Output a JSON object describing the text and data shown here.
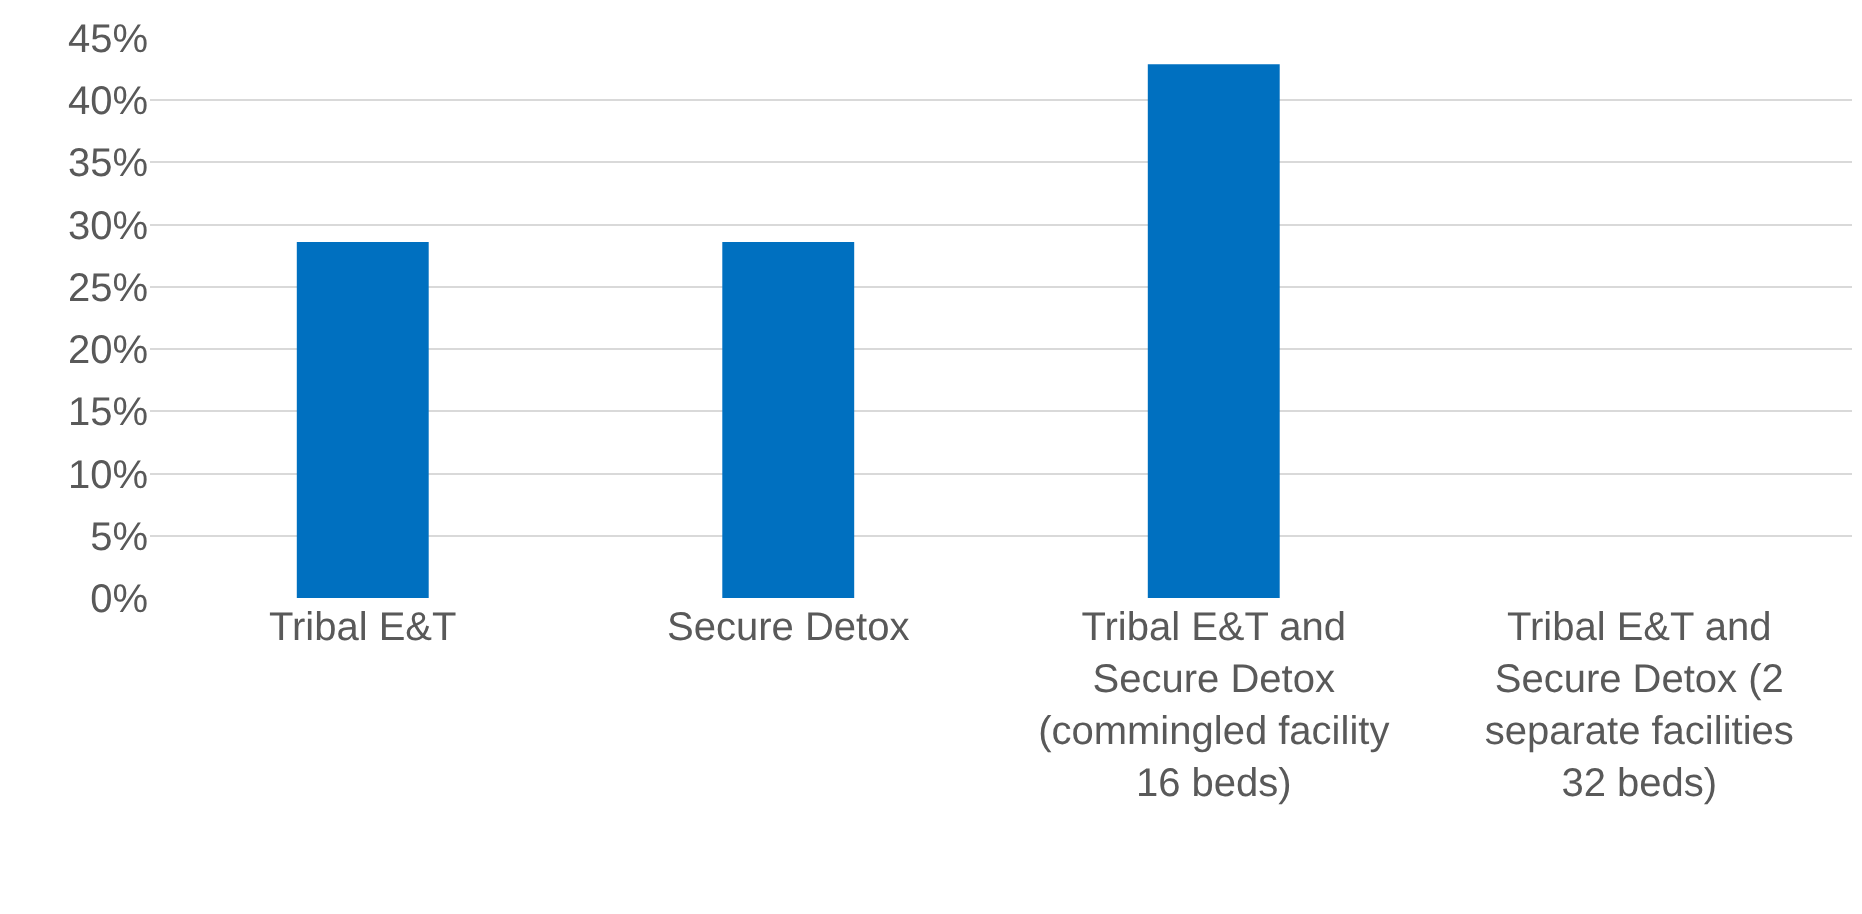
{
  "chart_data": {
    "type": "bar",
    "categories": [
      "Tribal E&T",
      "Secure Detox",
      "Tribal E&T and Secure Detox (commingled facility 16 beds)",
      "Tribal E&T and Secure Detox (2 separate facilities 32 beds)"
    ],
    "values": [
      28.6,
      28.6,
      42.9,
      0
    ],
    "color": "#0070c0",
    "ylim": [
      0,
      45
    ],
    "yticks": [
      {
        "value": 0,
        "label": "0%"
      },
      {
        "value": 5,
        "label": "5%"
      },
      {
        "value": 10,
        "label": "10%"
      },
      {
        "value": 15,
        "label": "15%"
      },
      {
        "value": 20,
        "label": "20%"
      },
      {
        "value": 25,
        "label": "25%"
      },
      {
        "value": 30,
        "label": "30%"
      },
      {
        "value": 35,
        "label": "35%"
      },
      {
        "value": 40,
        "label": "40%"
      },
      {
        "value": 45,
        "label": "45%"
      }
    ],
    "grid": "y"
  }
}
